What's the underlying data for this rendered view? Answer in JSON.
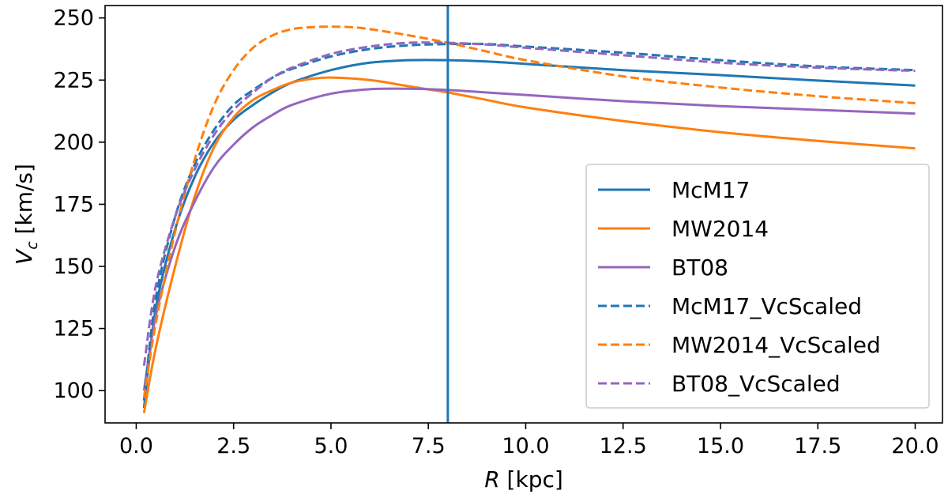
{
  "chart_data": {
    "type": "line",
    "xlabel": "R [kpc]",
    "ylabel": "V_c [km/s]",
    "xlim": [
      -0.8,
      20.7
    ],
    "ylim": [
      87,
      255
    ],
    "xticks": [
      "0.0",
      "2.5",
      "5.0",
      "7.5",
      "10.0",
      "12.5",
      "15.0",
      "17.5",
      "20.0"
    ],
    "yticks": [
      "100",
      "125",
      "150",
      "175",
      "200",
      "225",
      "250"
    ],
    "xtick_values": [
      0,
      2.5,
      5,
      7.5,
      10,
      12.5,
      15,
      17.5,
      20
    ],
    "ytick_values": [
      100,
      125,
      150,
      175,
      200,
      225,
      250
    ],
    "vline": {
      "x": 8.0,
      "color": "#1f77b4"
    },
    "legend_position": "lower-right",
    "series": [
      {
        "name": "McM17",
        "color": "#1f77b4",
        "dash": "solid",
        "x": [
          0.2,
          0.5,
          1,
          1.5,
          2,
          2.5,
          3,
          3.5,
          4,
          5,
          6,
          7,
          8,
          9,
          10,
          12.5,
          15,
          17.5,
          20
        ],
        "values": [
          93,
          133,
          165,
          186,
          200,
          209,
          215,
          220,
          224,
          229,
          232,
          233,
          233,
          232.5,
          231.5,
          229,
          227,
          224.8,
          222.8
        ]
      },
      {
        "name": "MW2014",
        "color": "#ff7f0e",
        "dash": "solid",
        "x": [
          0.2,
          0.5,
          1,
          1.5,
          2,
          2.5,
          3,
          3.5,
          4,
          4.5,
          5,
          6,
          7,
          8,
          9,
          10,
          12.5,
          15,
          17.5,
          20
        ],
        "values": [
          91,
          117,
          150,
          178,
          198,
          210,
          217,
          221,
          224,
          225.5,
          226,
          225,
          222.5,
          220,
          217,
          214,
          208.5,
          204,
          200.5,
          197.5
        ]
      },
      {
        "name": "BT08",
        "color": "#9467bd",
        "dash": "solid",
        "x": [
          0.2,
          0.5,
          1,
          1.5,
          2,
          2.5,
          3,
          3.5,
          4,
          5,
          6,
          7,
          8,
          9,
          10,
          12.5,
          15,
          17.5,
          20
        ],
        "values": [
          100,
          130,
          158,
          176,
          190,
          199,
          206,
          211,
          215,
          219.5,
          221.3,
          221.5,
          221,
          220,
          219,
          216.5,
          214.5,
          213,
          211.5
        ]
      },
      {
        "name": "McM17_VcScaled",
        "color": "#1f77b4",
        "dash": "dashed",
        "x": [
          0.2,
          0.5,
          1,
          1.5,
          2,
          2.5,
          3,
          3.5,
          4,
          5,
          6,
          7,
          8,
          9,
          10,
          12.5,
          15,
          17.5,
          20
        ],
        "values": [
          96,
          137,
          170,
          191,
          205,
          215,
          221,
          226,
          229.5,
          234.5,
          237.5,
          239,
          239.5,
          239.5,
          238.5,
          236,
          233,
          230.5,
          229
        ]
      },
      {
        "name": "MW2014_VcScaled",
        "color": "#ff7f0e",
        "dash": "dashed",
        "x": [
          0.2,
          0.5,
          1,
          1.5,
          2,
          2.5,
          3,
          3.5,
          4,
          4.5,
          5,
          5.5,
          6,
          7,
          8,
          9,
          10,
          12.5,
          15,
          17.5,
          20
        ],
        "values": [
          97,
          127,
          164,
          193,
          215,
          229,
          238,
          243,
          245.5,
          246.3,
          246.5,
          246.3,
          245.5,
          243,
          240,
          236.5,
          233,
          226.5,
          222,
          218.5,
          215.7
        ]
      },
      {
        "name": "BT08_VcScaled",
        "color": "#9467bd",
        "dash": "dashed",
        "x": [
          0.2,
          0.5,
          1,
          1.5,
          2,
          2.5,
          3,
          3.5,
          4,
          5,
          6,
          7,
          8,
          9,
          10,
          12.5,
          15,
          17.5,
          20
        ],
        "values": [
          110,
          142,
          170,
          189,
          203,
          213,
          220,
          226,
          230,
          235.5,
          238.5,
          240,
          240,
          239.3,
          238,
          235,
          232,
          230,
          228.7
        ]
      }
    ]
  }
}
